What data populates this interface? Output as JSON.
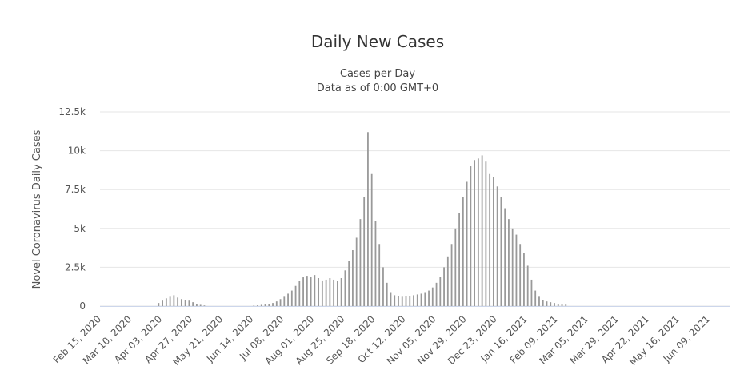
{
  "chart_data": {
    "type": "bar",
    "title": "Daily New Cases",
    "subtitle_lines": [
      "Cases per Day",
      "Data as of 0:00 GMT+0"
    ],
    "xlabel": "",
    "ylabel": "Novel Coronavirus Daily Cases",
    "ylim": [
      0,
      12500
    ],
    "y_ticks": [
      0,
      2500,
      5000,
      7500,
      10000,
      12500
    ],
    "y_tick_labels": [
      "0",
      "2.5k",
      "5k",
      "7.5k",
      "10k",
      "12.5k"
    ],
    "x_tick_labels": [
      "Feb 15, 2020",
      "Mar 10, 2020",
      "Apr 03, 2020",
      "Apr 27, 2020",
      "May 21, 2020",
      "Jun 14, 2020",
      "Jul 08, 2020",
      "Aug 01, 2020",
      "Aug 25, 2020",
      "Sep 18, 2020",
      "Oct 12, 2020",
      "Nov 05, 2020",
      "Nov 29, 2020",
      "Dec 23, 2020",
      "Jan 16, 2021",
      "Feb 09, 2021",
      "Mar 05, 2021",
      "Mar 29, 2021",
      "Apr 22, 2021",
      "May 16, 2021",
      "Jun 09, 2021"
    ],
    "grid": true,
    "series_color": "#999999",
    "day_step": 3,
    "series": [
      {
        "name": "Daily Cases",
        "start_date": "Feb 15, 2020",
        "values": [
          0,
          0,
          0,
          0,
          0,
          0,
          0,
          0,
          0,
          0,
          0,
          0,
          0,
          0,
          0,
          200,
          350,
          500,
          600,
          700,
          550,
          450,
          400,
          350,
          250,
          150,
          80,
          40,
          0,
          0,
          0,
          0,
          0,
          0,
          0,
          0,
          0,
          0,
          0,
          0,
          30,
          50,
          80,
          100,
          150,
          200,
          300,
          450,
          600,
          800,
          1000,
          1300,
          1600,
          1850,
          1950,
          1900,
          2000,
          1800,
          1650,
          1700,
          1800,
          1700,
          1600,
          1800,
          2300,
          2900,
          3600,
          4400,
          5600,
          7000,
          11200,
          8500,
          5500,
          4000,
          2500,
          1500,
          900,
          700,
          650,
          600,
          620,
          650,
          700,
          750,
          800,
          900,
          1000,
          1200,
          1500,
          1900,
          2500,
          3200,
          4000,
          5000,
          6000,
          7000,
          8000,
          9000,
          9400,
          9500,
          9700,
          9300,
          8500,
          8300,
          7700,
          7000,
          6300,
          5600,
          5000,
          4600,
          4000,
          3400,
          2600,
          1700,
          1000,
          600,
          400,
          300,
          250,
          200,
          150,
          120,
          100,
          0,
          0,
          0,
          0,
          0,
          0,
          0,
          0,
          0,
          0,
          0,
          0,
          0
        ]
      }
    ]
  }
}
